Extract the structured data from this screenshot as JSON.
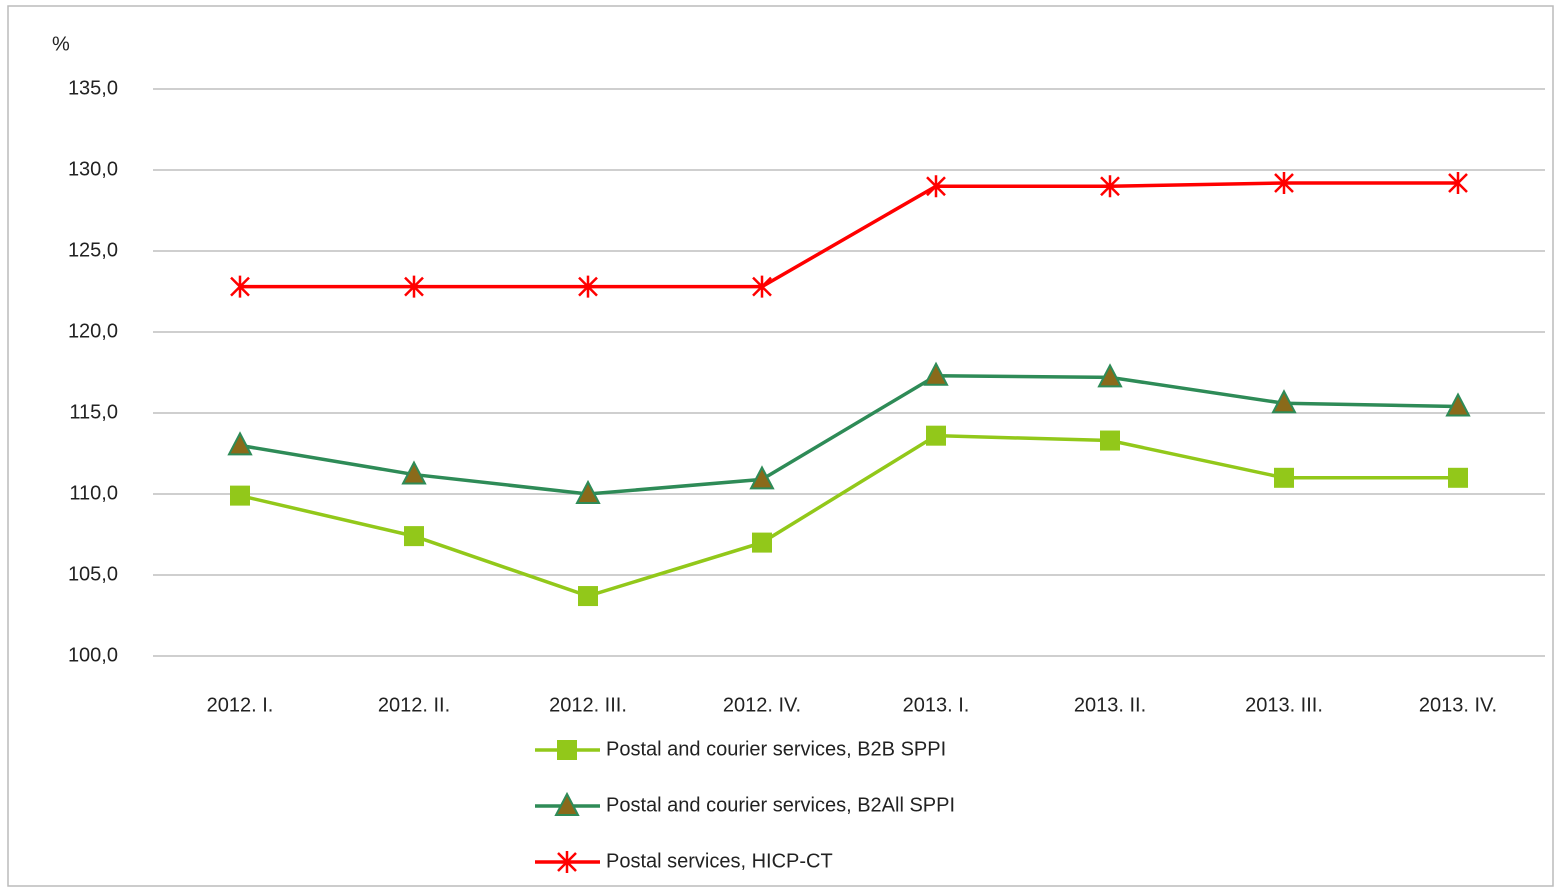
{
  "chart_data": {
    "type": "line",
    "y_label": "%",
    "categories": [
      "2012. I.",
      "2012. II.",
      "2012. III.",
      "2012. IV.",
      "2013. I.",
      "2013. II.",
      "2013. III.",
      "2013. IV."
    ],
    "series": [
      {
        "name": "Postal and courier services, B2B SPPI",
        "color": "#92c81a",
        "marker": "square",
        "marker_color": "#92c81a",
        "values": [
          109.9,
          107.4,
          103.7,
          107.0,
          113.6,
          113.3,
          111.0,
          111.0
        ]
      },
      {
        "name": "Postal and courier services, B2All SPPI",
        "color": "#2e8b57",
        "marker": "triangle",
        "marker_color": "#8a6a1a",
        "values": [
          113.0,
          111.2,
          110.0,
          110.9,
          117.3,
          117.2,
          115.6,
          115.4
        ]
      },
      {
        "name": "Postal services, HICP-CT",
        "color": "#ff0000",
        "marker": "asterisk",
        "marker_color": "#ff0000",
        "values": [
          122.8,
          122.8,
          122.8,
          122.8,
          129.0,
          129.0,
          129.2,
          129.2
        ]
      }
    ],
    "ylim": [
      100,
      135
    ],
    "yticks": [
      {
        "value": 100,
        "label": "100,0"
      },
      {
        "value": 105,
        "label": "105,0"
      },
      {
        "value": 110,
        "label": "110,0"
      },
      {
        "value": 115,
        "label": "115,0"
      },
      {
        "value": 120,
        "label": "120,0"
      },
      {
        "value": 125,
        "label": "125,0"
      },
      {
        "value": 130,
        "label": "130,0"
      },
      {
        "value": 135,
        "label": "135,0"
      }
    ],
    "grid": true,
    "legend": "bottom"
  }
}
